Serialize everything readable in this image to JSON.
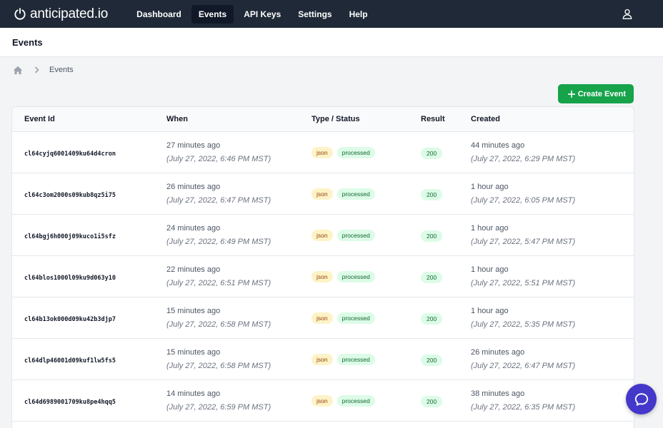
{
  "brand": {
    "name": "anticipated.io"
  },
  "nav": {
    "items": [
      {
        "label": "Dashboard",
        "active": false
      },
      {
        "label": "Events",
        "active": true
      },
      {
        "label": "API Keys",
        "active": false
      },
      {
        "label": "Settings",
        "active": false
      },
      {
        "label": "Help",
        "active": false
      }
    ]
  },
  "page": {
    "title": "Events"
  },
  "breadcrumb": {
    "current": "Events"
  },
  "actions": {
    "create_label": "Create Event"
  },
  "table": {
    "headers": [
      "Event Id",
      "When",
      "Type / Status",
      "Result",
      "Created"
    ],
    "rows": [
      {
        "id": "cl64cyjq6001409ku64d4cron",
        "when_rel": "27 minutes ago",
        "when_abs": "(July 27, 2022, 6:46 PM MST)",
        "type": "json",
        "status": "processed",
        "result": "200",
        "created_rel": "44 minutes ago",
        "created_abs": "(July 27, 2022, 6:29 PM MST)"
      },
      {
        "id": "cl64c3om2000s09kub8qz5i75",
        "when_rel": "26 minutes ago",
        "when_abs": "(July 27, 2022, 6:47 PM MST)",
        "type": "json",
        "status": "processed",
        "result": "200",
        "created_rel": "1 hour ago",
        "created_abs": "(July 27, 2022, 6:05 PM MST)"
      },
      {
        "id": "cl64bgj6h000j09kuco1i5sfz",
        "when_rel": "24 minutes ago",
        "when_abs": "(July 27, 2022, 6:49 PM MST)",
        "type": "json",
        "status": "processed",
        "result": "200",
        "created_rel": "1 hour ago",
        "created_abs": "(July 27, 2022, 5:47 PM MST)"
      },
      {
        "id": "cl64blos1000l09ku9d063y10",
        "when_rel": "22 minutes ago",
        "when_abs": "(July 27, 2022, 6:51 PM MST)",
        "type": "json",
        "status": "processed",
        "result": "200",
        "created_rel": "1 hour ago",
        "created_abs": "(July 27, 2022, 5:51 PM MST)"
      },
      {
        "id": "cl64b13ok000d09ku42b3djp7",
        "when_rel": "15 minutes ago",
        "when_abs": "(July 27, 2022, 6:58 PM MST)",
        "type": "json",
        "status": "processed",
        "result": "200",
        "created_rel": "1 hour ago",
        "created_abs": "(July 27, 2022, 5:35 PM MST)"
      },
      {
        "id": "cl64dlp46001d09kuf1lw5fs5",
        "when_rel": "15 minutes ago",
        "when_abs": "(July 27, 2022, 6:58 PM MST)",
        "type": "json",
        "status": "processed",
        "result": "200",
        "created_rel": "26 minutes ago",
        "created_abs": "(July 27, 2022, 6:47 PM MST)"
      },
      {
        "id": "cl64d6989001709ku8pe4hqq5",
        "when_rel": "14 minutes ago",
        "when_abs": "(July 27, 2022, 6:59 PM MST)",
        "type": "json",
        "status": "processed",
        "result": "200",
        "created_rel": "38 minutes ago",
        "created_abs": "(July 27, 2022, 6:35 PM MST)"
      }
    ]
  },
  "icons": {
    "brand": "power-icon",
    "user": "user-icon",
    "home": "home-icon",
    "separator": "chevron-right-icon",
    "create": "plus-icon",
    "chat": "chat-bubble-icon"
  },
  "colors": {
    "nav_bg": "#1f2937",
    "primary_button": "#16a34a",
    "chat_launcher": "#4338ca",
    "json_badge_bg": "#fef3c7",
    "status_badge_bg": "#dcfce7"
  }
}
